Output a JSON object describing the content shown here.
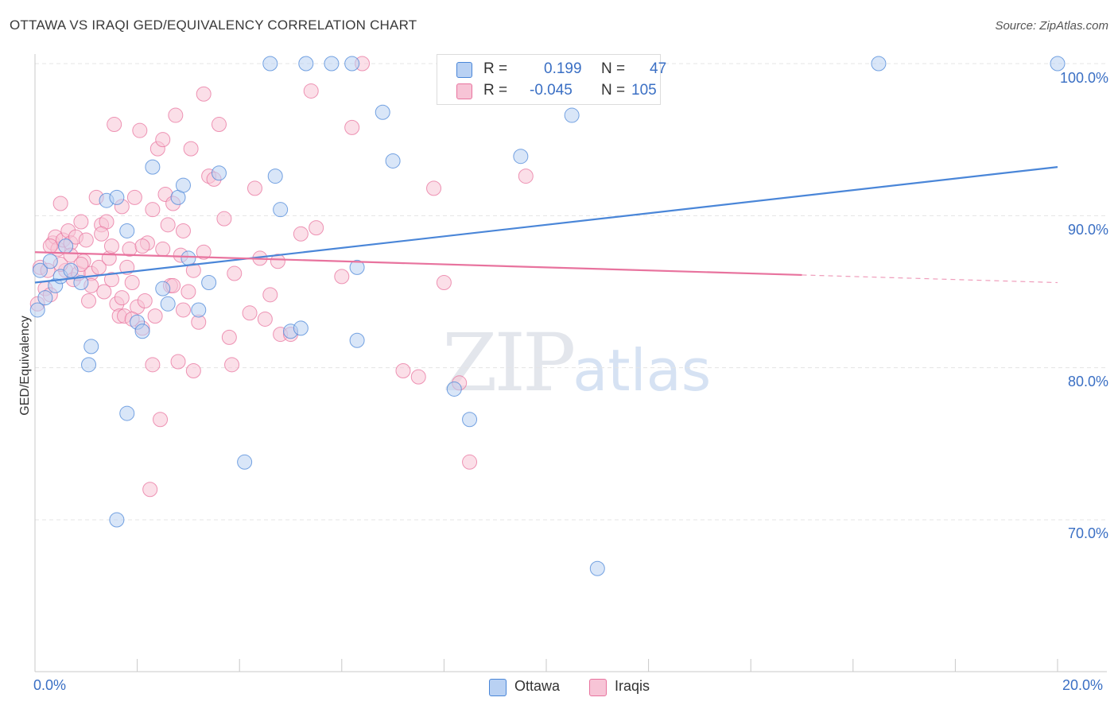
{
  "title": "OTTAWA VS IRAQI GED/EQUIVALENCY CORRELATION CHART",
  "source": "Source: ZipAtlas.com",
  "watermark": {
    "zip": "ZIP",
    "atlas": "atlas"
  },
  "colors": {
    "ottawa": "#4a86d8",
    "ottawa_fill": "#b9d1f3",
    "iraqis": "#e8739e",
    "iraqis_fill": "#f7c4d6",
    "tick_text": "#3a6fc4",
    "grid": "#e4e4e4"
  },
  "legend_top": [
    {
      "r_label": "R =",
      "r_value": "0.199",
      "n_label": "N =",
      "n_value": "47"
    },
    {
      "r_label": "R =",
      "r_value": "-0.045",
      "n_label": "N =",
      "n_value": "105"
    }
  ],
  "legend_bottom": [
    {
      "label": "Ottawa"
    },
    {
      "label": "Iraqis"
    }
  ],
  "chart_data": {
    "type": "scatter",
    "title": "OTTAWA VS IRAQI GED/EQUIVALENCY CORRELATION CHART",
    "xlabel": "",
    "ylabel": "GED/Equivalency",
    "xlim": [
      0,
      20
    ],
    "ylim": [
      62,
      101
    ],
    "x_tick_labels": [
      "0.0%",
      "20.0%"
    ],
    "y_ticks": [
      70,
      80,
      90,
      100
    ],
    "y_tick_labels": [
      "70.0%",
      "80.0%",
      "90.0%",
      "100.0%"
    ],
    "grid": true,
    "legend_placement": "bottom",
    "series": [
      {
        "name": "Ottawa",
        "r": 0.199,
        "n": 47,
        "trend": {
          "x": [
            0,
            20
          ],
          "y": [
            85.6,
            93.2
          ],
          "dashed_from": null
        },
        "points": [
          [
            0.05,
            83.8
          ],
          [
            0.1,
            86.4
          ],
          [
            0.2,
            84.6
          ],
          [
            0.3,
            87.0
          ],
          [
            0.4,
            85.4
          ],
          [
            0.5,
            86.0
          ],
          [
            0.6,
            88.0
          ],
          [
            0.7,
            86.4
          ],
          [
            0.9,
            85.6
          ],
          [
            1.1,
            81.4
          ],
          [
            1.05,
            80.2
          ],
          [
            1.4,
            91.0
          ],
          [
            1.6,
            91.2
          ],
          [
            1.8,
            89.0
          ],
          [
            1.6,
            70.0
          ],
          [
            1.8,
            77.0
          ],
          [
            2.0,
            83.0
          ],
          [
            2.1,
            82.4
          ],
          [
            2.3,
            93.2
          ],
          [
            2.5,
            85.2
          ],
          [
            2.6,
            84.2
          ],
          [
            2.8,
            91.2
          ],
          [
            2.9,
            92.0
          ],
          [
            3.0,
            87.2
          ],
          [
            3.2,
            83.8
          ],
          [
            3.4,
            85.6
          ],
          [
            3.6,
            92.8
          ],
          [
            4.1,
            73.8
          ],
          [
            4.6,
            100.0
          ],
          [
            4.7,
            92.6
          ],
          [
            4.8,
            90.4
          ],
          [
            5.0,
            82.4
          ],
          [
            5.2,
            82.6
          ],
          [
            5.3,
            100.0
          ],
          [
            5.8,
            100.0
          ],
          [
            6.2,
            100.0
          ],
          [
            6.3,
            81.8
          ],
          [
            6.3,
            86.6
          ],
          [
            6.8,
            96.8
          ],
          [
            7.0,
            93.6
          ],
          [
            8.2,
            78.6
          ],
          [
            8.5,
            76.6
          ],
          [
            9.5,
            93.9
          ],
          [
            10.5,
            96.6
          ],
          [
            11.0,
            66.8
          ],
          [
            16.5,
            100.0
          ],
          [
            20.0,
            100.0
          ]
        ]
      },
      {
        "name": "Iraqis",
        "r": -0.045,
        "n": 105,
        "trend": {
          "x": [
            0,
            20
          ],
          "y": [
            87.6,
            85.6
          ],
          "dashed_from": 15.0
        },
        "points": [
          [
            0.05,
            84.2
          ],
          [
            0.1,
            86.6
          ],
          [
            0.2,
            85.2
          ],
          [
            0.25,
            86.4
          ],
          [
            0.3,
            84.8
          ],
          [
            0.35,
            88.2
          ],
          [
            0.4,
            88.6
          ],
          [
            0.45,
            87.8
          ],
          [
            0.5,
            90.8
          ],
          [
            0.55,
            88.4
          ],
          [
            0.6,
            86.4
          ],
          [
            0.65,
            89.0
          ],
          [
            0.7,
            88.2
          ],
          [
            0.75,
            85.8
          ],
          [
            0.8,
            88.6
          ],
          [
            0.85,
            86.2
          ],
          [
            0.9,
            89.6
          ],
          [
            0.95,
            87.0
          ],
          [
            1.0,
            88.4
          ],
          [
            1.05,
            84.4
          ],
          [
            1.1,
            86.2
          ],
          [
            1.2,
            91.2
          ],
          [
            1.25,
            86.6
          ],
          [
            1.3,
            89.4
          ],
          [
            1.35,
            85.0
          ],
          [
            1.4,
            89.6
          ],
          [
            1.45,
            87.2
          ],
          [
            1.5,
            88.0
          ],
          [
            1.55,
            96.0
          ],
          [
            1.6,
            84.2
          ],
          [
            1.65,
            83.4
          ],
          [
            1.7,
            90.6
          ],
          [
            1.75,
            83.4
          ],
          [
            1.8,
            86.6
          ],
          [
            1.85,
            87.8
          ],
          [
            1.9,
            85.6
          ],
          [
            1.95,
            91.2
          ],
          [
            2.0,
            84.0
          ],
          [
            2.05,
            95.6
          ],
          [
            2.1,
            82.6
          ],
          [
            2.15,
            84.4
          ],
          [
            2.2,
            88.2
          ],
          [
            2.25,
            72.0
          ],
          [
            2.3,
            80.2
          ],
          [
            2.35,
            83.4
          ],
          [
            2.4,
            94.4
          ],
          [
            2.45,
            76.6
          ],
          [
            2.5,
            95.0
          ],
          [
            2.55,
            91.4
          ],
          [
            2.6,
            89.4
          ],
          [
            2.65,
            85.4
          ],
          [
            2.7,
            90.8
          ],
          [
            2.75,
            96.6
          ],
          [
            2.8,
            80.4
          ],
          [
            2.85,
            87.4
          ],
          [
            2.9,
            89.0
          ],
          [
            3.0,
            85.0
          ],
          [
            3.05,
            94.4
          ],
          [
            3.1,
            79.8
          ],
          [
            3.2,
            83.0
          ],
          [
            3.3,
            98.0
          ],
          [
            3.4,
            92.6
          ],
          [
            3.5,
            92.4
          ],
          [
            3.6,
            96.0
          ],
          [
            3.7,
            89.8
          ],
          [
            3.8,
            82.0
          ],
          [
            3.85,
            80.2
          ],
          [
            3.9,
            86.2
          ],
          [
            4.2,
            83.6
          ],
          [
            4.3,
            91.8
          ],
          [
            4.4,
            87.2
          ],
          [
            4.5,
            83.2
          ],
          [
            4.6,
            84.8
          ],
          [
            4.75,
            87.0
          ],
          [
            4.8,
            82.2
          ],
          [
            5.0,
            82.2
          ],
          [
            5.2,
            88.8
          ],
          [
            5.4,
            98.2
          ],
          [
            5.5,
            89.2
          ],
          [
            6.0,
            86.0
          ],
          [
            6.2,
            95.8
          ],
          [
            6.4,
            100.0
          ],
          [
            7.2,
            79.8
          ],
          [
            7.5,
            79.4
          ],
          [
            7.8,
            91.8
          ],
          [
            8.0,
            85.6
          ],
          [
            8.3,
            79.0
          ],
          [
            8.5,
            73.8
          ],
          [
            9.6,
            92.6
          ],
          [
            0.3,
            88.0
          ],
          [
            0.5,
            86.8
          ],
          [
            0.7,
            87.4
          ],
          [
            0.9,
            86.8
          ],
          [
            1.1,
            85.4
          ],
          [
            1.3,
            88.8
          ],
          [
            1.5,
            85.8
          ],
          [
            1.7,
            84.6
          ],
          [
            1.9,
            83.2
          ],
          [
            2.1,
            88.0
          ],
          [
            2.3,
            90.4
          ],
          [
            2.5,
            87.8
          ],
          [
            2.7,
            85.4
          ],
          [
            2.9,
            83.8
          ],
          [
            3.1,
            86.4
          ],
          [
            3.3,
            87.6
          ]
        ]
      }
    ]
  }
}
